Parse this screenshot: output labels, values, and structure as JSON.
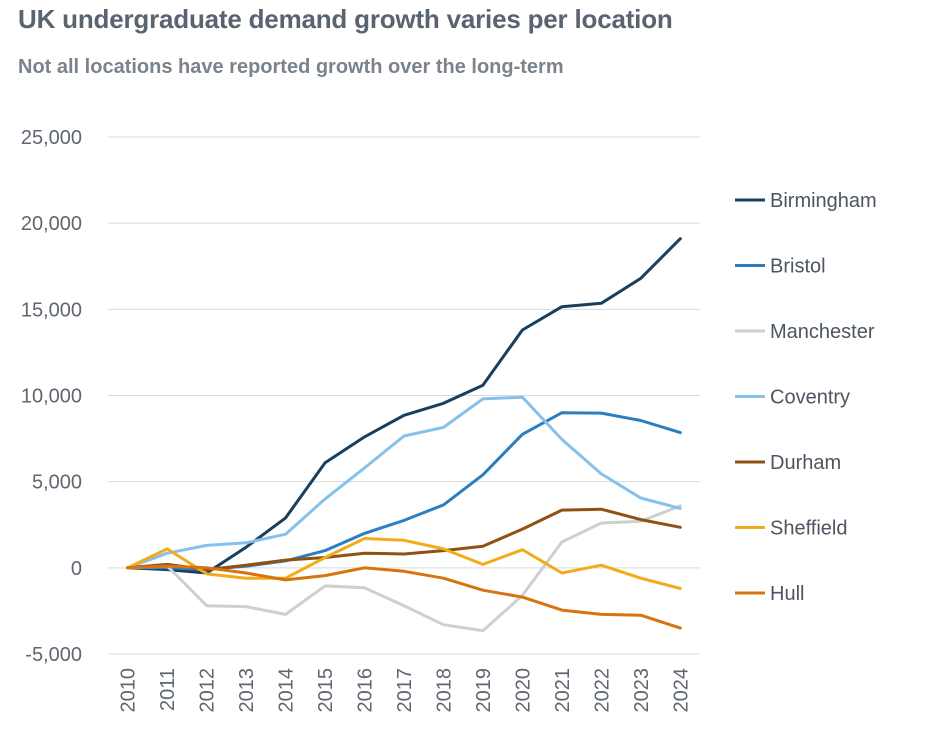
{
  "header": {
    "title": "UK undergraduate demand growth varies per location",
    "subtitle": "Not all locations have reported growth over the long-term"
  },
  "chart_data": {
    "type": "line",
    "x": [
      "2010",
      "2011",
      "2012",
      "2013",
      "2014",
      "2015",
      "2016",
      "2017",
      "2018",
      "2019",
      "2020",
      "2021",
      "2022",
      "2023",
      "2024"
    ],
    "ylim": [
      -5000,
      25000
    ],
    "yticks": [
      -5000,
      0,
      5000,
      10000,
      15000,
      20000,
      25000
    ],
    "ytick_labels": [
      "-5,000",
      "0",
      "5,000",
      "10,000",
      "15,000",
      "20,000",
      "25,000"
    ],
    "grid": true,
    "legend": "right",
    "series": [
      {
        "name": "Birmingham",
        "color": "#173f5f",
        "values": [
          0,
          -100,
          -300,
          1200,
          2900,
          6100,
          7600,
          8850,
          9550,
          10600,
          13800,
          15150,
          15350,
          16800,
          19100
        ]
      },
      {
        "name": "Bristol",
        "color": "#2b7fc1",
        "values": [
          0,
          0,
          -100,
          100,
          400,
          1000,
          2000,
          2750,
          3650,
          5400,
          7750,
          9000,
          8980,
          8550,
          7850
        ]
      },
      {
        "name": "Manchester",
        "color": "#cfcfcf",
        "values": [
          0,
          100,
          -2200,
          -2250,
          -2700,
          -1050,
          -1150,
          -2200,
          -3300,
          -3650,
          -1600,
          1500,
          2600,
          2700,
          3600
        ]
      },
      {
        "name": "Coventry",
        "color": "#86c1ec",
        "values": [
          0,
          850,
          1300,
          1450,
          1950,
          4000,
          5800,
          7650,
          8150,
          9800,
          9900,
          7450,
          5450,
          4050,
          3450
        ]
      },
      {
        "name": "Durham",
        "color": "#8f5213",
        "values": [
          0,
          200,
          -100,
          150,
          450,
          600,
          850,
          800,
          1000,
          1250,
          2250,
          3350,
          3400,
          2800,
          2350
        ]
      },
      {
        "name": "Sheffield",
        "color": "#f2ab1a",
        "values": [
          0,
          1100,
          -350,
          -600,
          -600,
          600,
          1700,
          1600,
          1100,
          200,
          1050,
          -300,
          150,
          -600,
          -1200
        ]
      },
      {
        "name": "Hull",
        "color": "#d8730f",
        "values": [
          0,
          100,
          0,
          -300,
          -700,
          -450,
          0,
          -200,
          -600,
          -1300,
          -1700,
          -2450,
          -2700,
          -2750,
          -3500
        ]
      }
    ]
  }
}
